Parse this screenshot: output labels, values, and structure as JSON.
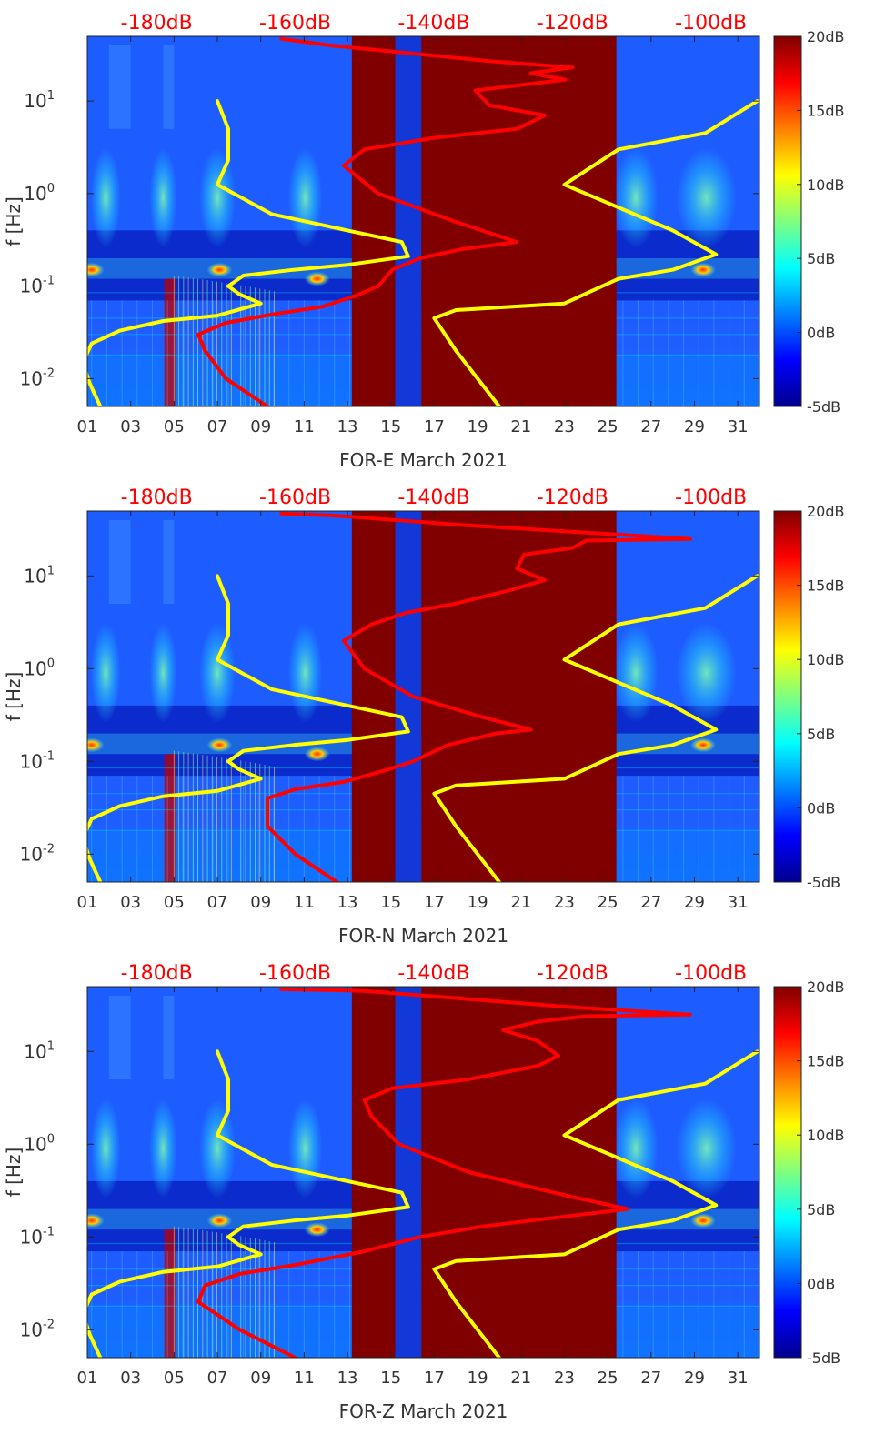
{
  "chart_data": [
    {
      "type": "heatmap",
      "title": "",
      "xlabel": "FOR-E March 2021",
      "ylabel": "f [Hz]",
      "x_tick_labels": [
        "01",
        "03",
        "05",
        "07",
        "09",
        "11",
        "13",
        "15",
        "17",
        "19",
        "21",
        "23",
        "25",
        "27",
        "29",
        "31"
      ],
      "xlim": [
        1,
        32
      ],
      "y_scale": "log",
      "y_tick_labels": [
        {
          "base": "10",
          "exp": "1"
        },
        {
          "base": "10",
          "exp": "0"
        },
        {
          "base": "10",
          "exp": "-1"
        },
        {
          "base": "10",
          "exp": "-2"
        }
      ],
      "y_ticks": [
        10,
        1,
        0.1,
        0.01
      ],
      "ylim": [
        0.005,
        50
      ],
      "top_axis_labels": [
        "-180dB",
        "-160dB",
        "-140dB",
        "-120dB",
        "-100dB"
      ],
      "top_axis_values": [
        -180,
        -160,
        -140,
        -120,
        -100
      ],
      "top_axis_range": [
        -190,
        -93
      ],
      "top_axis_color": "#ff0000",
      "colorbar_labels": [
        "20dB",
        "15dB",
        "10dB",
        "5dB",
        "0dB",
        "-5dB"
      ],
      "colorbar_values": [
        20,
        15,
        10,
        5,
        0,
        -5
      ],
      "colorbar_range": [
        -5,
        20
      ],
      "data_gaps_days": [
        [
          13.2,
          15.2
        ],
        [
          16.4,
          25.4
        ]
      ],
      "series": [
        {
          "color": "#ffff00",
          "axis": "days",
          "points": [
            [
              1.6,
              0.005
            ],
            [
              1.1,
              0.009
            ],
            [
              0.8,
              0.015
            ],
            [
              1.2,
              0.024
            ],
            [
              2.5,
              0.033
            ],
            [
              4.5,
              0.042
            ],
            [
              7.0,
              0.048
            ],
            [
              9.0,
              0.065
            ],
            [
              8.0,
              0.082
            ],
            [
              7.5,
              0.1
            ],
            [
              8.2,
              0.13
            ],
            [
              10.5,
              0.15
            ],
            [
              13.0,
              0.17
            ],
            [
              15.8,
              0.21
            ],
            [
              15.5,
              0.3
            ],
            [
              13.0,
              0.4
            ],
            [
              9.5,
              0.6
            ],
            [
              7.0,
              1.25
            ],
            [
              7.5,
              2.3
            ],
            [
              7.5,
              5.0
            ],
            [
              7.0,
              10
            ]
          ]
        },
        {
          "color": "#ff0000",
          "axis": "dB",
          "points": [
            [
              -164,
              0.005
            ],
            [
              -170,
              0.01
            ],
            [
              -173,
              0.02
            ],
            [
              -174,
              0.03
            ],
            [
              -170,
              0.04
            ],
            [
              -163,
              0.05
            ],
            [
              -156,
              0.06
            ],
            [
              -151,
              0.08
            ],
            [
              -148,
              0.1
            ],
            [
              -146,
              0.15
            ],
            [
              -142,
              0.2
            ],
            [
              -136,
              0.25
            ],
            [
              -128,
              0.3
            ],
            [
              -137,
              0.5
            ],
            [
              -148,
              1.0
            ],
            [
              -153,
              2.0
            ],
            [
              -150,
              3.0
            ],
            [
              -140,
              4.0
            ],
            [
              -128,
              5.0
            ],
            [
              -124,
              7.0
            ],
            [
              -132,
              9.0
            ],
            [
              -134,
              13.0
            ],
            [
              -121,
              17.0
            ],
            [
              -126,
              20.0
            ],
            [
              -120,
              23.0
            ],
            [
              -132,
              27.0
            ],
            [
              -155,
              40.0
            ],
            [
              -162,
              47.0
            ]
          ]
        },
        {
          "color": "#ffff00",
          "axis": "days",
          "points": [
            [
              20.0,
              0.005
            ],
            [
              19.0,
              0.01
            ],
            [
              18.0,
              0.02
            ],
            [
              17.0,
              0.045
            ],
            [
              18.0,
              0.055
            ],
            [
              23.0,
              0.065
            ],
            [
              25.5,
              0.12
            ],
            [
              28.0,
              0.15
            ],
            [
              30.0,
              0.22
            ],
            [
              28.0,
              0.4
            ],
            [
              23.0,
              1.25
            ],
            [
              25.5,
              3.0
            ],
            [
              29.5,
              4.5
            ],
            [
              31.9,
              10
            ]
          ]
        }
      ]
    },
    {
      "type": "heatmap",
      "title": "",
      "xlabel": "FOR-N March 2021",
      "ylabel": "f [Hz]",
      "x_tick_labels": [
        "01",
        "03",
        "05",
        "07",
        "09",
        "11",
        "13",
        "15",
        "17",
        "19",
        "21",
        "23",
        "25",
        "27",
        "29",
        "31"
      ],
      "xlim": [
        1,
        32
      ],
      "y_scale": "log",
      "y_tick_labels": [
        {
          "base": "10",
          "exp": "1"
        },
        {
          "base": "10",
          "exp": "0"
        },
        {
          "base": "10",
          "exp": "-1"
        },
        {
          "base": "10",
          "exp": "-2"
        }
      ],
      "y_ticks": [
        10,
        1,
        0.1,
        0.01
      ],
      "ylim": [
        0.005,
        50
      ],
      "top_axis_labels": [
        "-180dB",
        "-160dB",
        "-140dB",
        "-120dB",
        "-100dB"
      ],
      "top_axis_values": [
        -180,
        -160,
        -140,
        -120,
        -100
      ],
      "top_axis_range": [
        -190,
        -93
      ],
      "top_axis_color": "#ff0000",
      "colorbar_labels": [
        "20dB",
        "15dB",
        "10dB",
        "5dB",
        "0dB",
        "-5dB"
      ],
      "colorbar_values": [
        20,
        15,
        10,
        5,
        0,
        -5
      ],
      "colorbar_range": [
        -5,
        20
      ],
      "data_gaps_days": [
        [
          13.2,
          15.2
        ],
        [
          16.4,
          25.4
        ]
      ],
      "series": [
        {
          "color": "#ffff00",
          "axis": "days",
          "points": [
            [
              1.6,
              0.005
            ],
            [
              1.1,
              0.009
            ],
            [
              0.8,
              0.015
            ],
            [
              1.2,
              0.024
            ],
            [
              2.5,
              0.033
            ],
            [
              4.5,
              0.042
            ],
            [
              7.0,
              0.048
            ],
            [
              9.0,
              0.065
            ],
            [
              8.0,
              0.082
            ],
            [
              7.5,
              0.1
            ],
            [
              8.2,
              0.13
            ],
            [
              10.5,
              0.15
            ],
            [
              13.0,
              0.17
            ],
            [
              15.8,
              0.21
            ],
            [
              15.5,
              0.3
            ],
            [
              13.0,
              0.4
            ],
            [
              9.5,
              0.6
            ],
            [
              7.0,
              1.25
            ],
            [
              7.5,
              2.3
            ],
            [
              7.5,
              5.0
            ],
            [
              7.0,
              10
            ]
          ]
        },
        {
          "color": "#ff0000",
          "axis": "dB",
          "points": [
            [
              -154,
              0.005
            ],
            [
              -160,
              0.01
            ],
            [
              -164,
              0.02
            ],
            [
              -164,
              0.04
            ],
            [
              -160,
              0.05
            ],
            [
              -153,
              0.06
            ],
            [
              -147,
              0.08
            ],
            [
              -143,
              0.1
            ],
            [
              -138,
              0.15
            ],
            [
              -131,
              0.2
            ],
            [
              -126,
              0.22
            ],
            [
              -133,
              0.3
            ],
            [
              -143,
              0.5
            ],
            [
              -150,
              1.0
            ],
            [
              -153,
              2.0
            ],
            [
              -149,
              3.0
            ],
            [
              -144,
              4.0
            ],
            [
              -137,
              5.0
            ],
            [
              -129,
              7.0
            ],
            [
              -124,
              9.0
            ],
            [
              -128,
              12.0
            ],
            [
              -127,
              17.0
            ],
            [
              -120,
              20.0
            ],
            [
              -118,
              24.0
            ],
            [
              -103,
              25.0
            ],
            [
              -135,
              35.0
            ],
            [
              -155,
              45.0
            ],
            [
              -162,
              47.0
            ]
          ]
        },
        {
          "color": "#ffff00",
          "axis": "days",
          "points": [
            [
              20.0,
              0.005
            ],
            [
              19.0,
              0.01
            ],
            [
              18.0,
              0.02
            ],
            [
              17.0,
              0.045
            ],
            [
              18.0,
              0.055
            ],
            [
              23.0,
              0.065
            ],
            [
              25.5,
              0.12
            ],
            [
              28.0,
              0.15
            ],
            [
              30.0,
              0.22
            ],
            [
              28.0,
              0.4
            ],
            [
              23.0,
              1.25
            ],
            [
              25.5,
              3.0
            ],
            [
              29.5,
              4.5
            ],
            [
              31.9,
              10
            ]
          ]
        }
      ]
    },
    {
      "type": "heatmap",
      "title": "",
      "xlabel": "FOR-Z March 2021",
      "ylabel": "f [Hz]",
      "x_tick_labels": [
        "01",
        "03",
        "05",
        "07",
        "09",
        "11",
        "13",
        "15",
        "17",
        "19",
        "21",
        "23",
        "25",
        "27",
        "29",
        "31"
      ],
      "xlim": [
        1,
        32
      ],
      "y_scale": "log",
      "y_tick_labels": [
        {
          "base": "10",
          "exp": "1"
        },
        {
          "base": "10",
          "exp": "0"
        },
        {
          "base": "10",
          "exp": "-1"
        },
        {
          "base": "10",
          "exp": "-2"
        }
      ],
      "y_ticks": [
        10,
        1,
        0.1,
        0.01
      ],
      "ylim": [
        0.005,
        50
      ],
      "top_axis_labels": [
        "-180dB",
        "-160dB",
        "-140dB",
        "-120dB",
        "-100dB"
      ],
      "top_axis_values": [
        -180,
        -160,
        -140,
        -120,
        -100
      ],
      "top_axis_range": [
        -190,
        -93
      ],
      "top_axis_color": "#ff0000",
      "colorbar_labels": [
        "20dB",
        "15dB",
        "10dB",
        "5dB",
        "0dB",
        "-5dB"
      ],
      "colorbar_values": [
        20,
        15,
        10,
        5,
        0,
        -5
      ],
      "colorbar_range": [
        -5,
        20
      ],
      "data_gaps_days": [
        [
          13.2,
          15.2
        ],
        [
          16.4,
          25.4
        ]
      ],
      "series": [
        {
          "color": "#ffff00",
          "axis": "days",
          "points": [
            [
              1.6,
              0.005
            ],
            [
              1.1,
              0.009
            ],
            [
              0.8,
              0.015
            ],
            [
              1.2,
              0.024
            ],
            [
              2.5,
              0.033
            ],
            [
              4.5,
              0.042
            ],
            [
              7.0,
              0.048
            ],
            [
              9.0,
              0.065
            ],
            [
              8.0,
              0.082
            ],
            [
              7.5,
              0.1
            ],
            [
              8.2,
              0.13
            ],
            [
              10.5,
              0.15
            ],
            [
              13.0,
              0.17
            ],
            [
              15.8,
              0.21
            ],
            [
              15.5,
              0.3
            ],
            [
              13.0,
              0.4
            ],
            [
              9.5,
              0.6
            ],
            [
              7.0,
              1.25
            ],
            [
              7.5,
              2.3
            ],
            [
              7.5,
              5.0
            ],
            [
              7.0,
              10
            ]
          ]
        },
        {
          "color": "#ff0000",
          "axis": "dB",
          "points": [
            [
              -160,
              0.005
            ],
            [
              -168,
              0.01
            ],
            [
              -174,
              0.02
            ],
            [
              -173,
              0.03
            ],
            [
              -168,
              0.04
            ],
            [
              -160,
              0.05
            ],
            [
              -150,
              0.07
            ],
            [
              -142,
              0.1
            ],
            [
              -133,
              0.13
            ],
            [
              -120,
              0.17
            ],
            [
              -112,
              0.2
            ],
            [
              -120,
              0.27
            ],
            [
              -135,
              0.5
            ],
            [
              -145,
              1.0
            ],
            [
              -149,
              2.0
            ],
            [
              -150,
              3.0
            ],
            [
              -146,
              4.0
            ],
            [
              -135,
              5.0
            ],
            [
              -125,
              7.0
            ],
            [
              -122,
              9.0
            ],
            [
              -125,
              13.0
            ],
            [
              -130,
              17.0
            ],
            [
              -125,
              21.0
            ],
            [
              -118,
              24.0
            ],
            [
              -103,
              25.0
            ],
            [
              -120,
              30.0
            ],
            [
              -150,
              45.0
            ],
            [
              -162,
              47.0
            ]
          ]
        },
        {
          "color": "#ffff00",
          "axis": "days",
          "points": [
            [
              20.0,
              0.005
            ],
            [
              19.0,
              0.01
            ],
            [
              18.0,
              0.02
            ],
            [
              17.0,
              0.045
            ],
            [
              18.0,
              0.055
            ],
            [
              23.0,
              0.065
            ],
            [
              25.5,
              0.12
            ],
            [
              28.0,
              0.15
            ],
            [
              30.0,
              0.22
            ],
            [
              28.0,
              0.4
            ],
            [
              23.0,
              1.25
            ],
            [
              25.5,
              3.0
            ],
            [
              29.5,
              4.5
            ],
            [
              31.9,
              10
            ]
          ]
        }
      ]
    }
  ]
}
